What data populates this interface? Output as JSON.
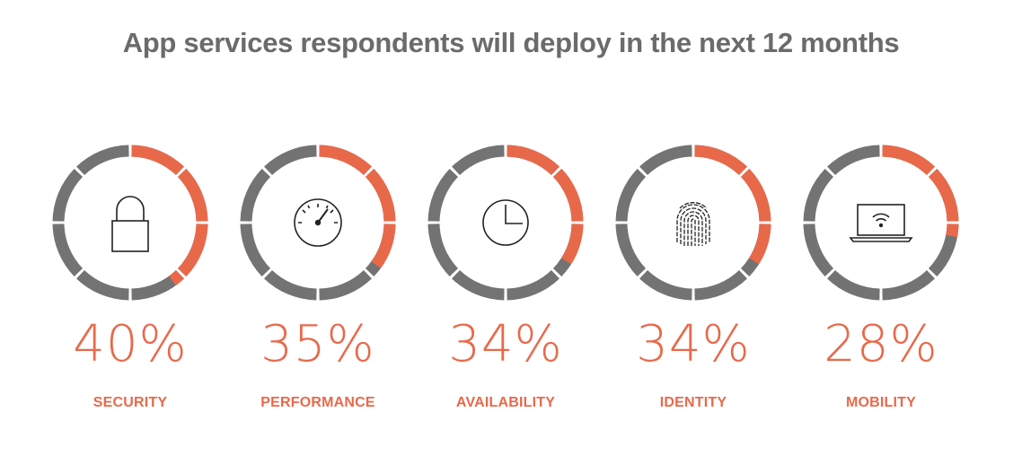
{
  "title": "App services respondents will deploy in the next 12 months",
  "colors": {
    "accent": "#e8694a",
    "track": "#737373",
    "title": "#6b6b6b",
    "icon": "#222222"
  },
  "chart_data": {
    "type": "donut",
    "title": "App services respondents will deploy in the next 12 months",
    "unit": "%",
    "categories": [
      "SECURITY",
      "PERFORMANCE",
      "AVAILABILITY",
      "IDENTITY",
      "MOBILITY"
    ],
    "values": [
      40,
      35,
      34,
      34,
      28
    ],
    "items": [
      {
        "label": "SECURITY",
        "value": 40,
        "display": "40%",
        "icon": "padlock-icon"
      },
      {
        "label": "PERFORMANCE",
        "value": 35,
        "display": "35%",
        "icon": "speedometer-icon"
      },
      {
        "label": "AVAILABILITY",
        "value": 34,
        "display": "34%",
        "icon": "clock-icon"
      },
      {
        "label": "IDENTITY",
        "value": 34,
        "display": "34%",
        "icon": "fingerprint-icon"
      },
      {
        "label": "MOBILITY",
        "value": 28,
        "display": "28%",
        "icon": "laptop-wifi-icon"
      }
    ]
  }
}
